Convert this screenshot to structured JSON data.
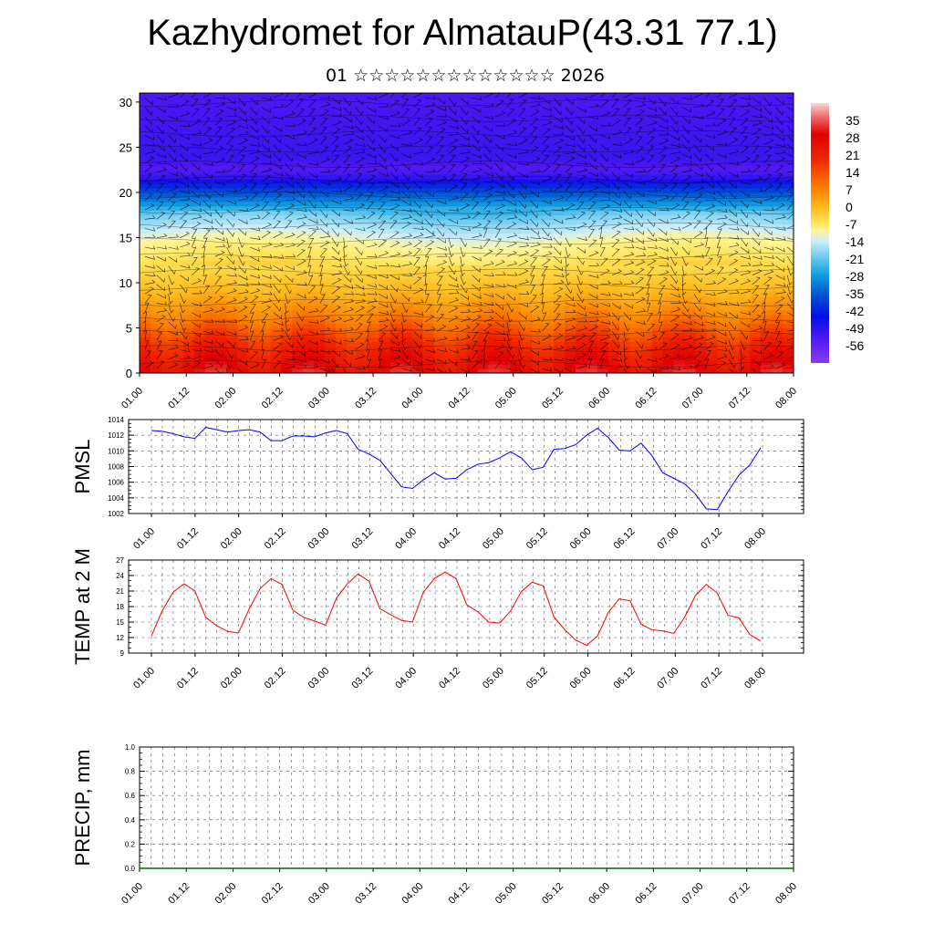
{
  "title": "Kazhydromet for AlmatauP(43.31 77.1)",
  "subtitle": "01 ☆☆☆☆☆☆☆☆☆☆☆☆☆ 2026",
  "colors": {
    "pmsl_line": "#0000ff",
    "temp_line": "#ff0000",
    "precip_line": "#006600"
  },
  "chart_data": [
    {
      "type": "heatmap",
      "title": "",
      "xlabel": "",
      "ylabel": "",
      "x_ticks": [
        "01.00",
        "01.12",
        "02.00",
        "02.12",
        "03.00",
        "03.12",
        "04.00",
        "04.12",
        "05.00",
        "05.12",
        "06.00",
        "06.12",
        "07.00",
        "07.12",
        "08.00"
      ],
      "y_ticks": [
        0,
        5,
        10,
        15,
        20,
        25,
        30
      ],
      "ylim": [
        0,
        31
      ],
      "colorbar": {
        "labels": [
          35,
          28,
          21,
          14,
          7,
          0,
          -7,
          -14,
          -21,
          -28,
          -35,
          -42,
          -49,
          -56
        ],
        "range": [
          -63,
          42
        ]
      },
      "overlay": "wind barbs",
      "temperature_profile": [
        {
          "level": 0,
          "value": 28
        },
        {
          "level": 3,
          "value": 22
        },
        {
          "level": 6,
          "value": 14
        },
        {
          "level": 9,
          "value": 7
        },
        {
          "level": 12,
          "value": 1
        },
        {
          "level": 14.5,
          "value": -7
        },
        {
          "level": 16,
          "value": -14
        },
        {
          "level": 18,
          "value": -24
        },
        {
          "level": 20,
          "value": -38
        },
        {
          "level": 21.5,
          "value": -52
        },
        {
          "level": 22.5,
          "value": -57
        },
        {
          "level": 24,
          "value": -54
        },
        {
          "level": 31,
          "value": -56
        }
      ]
    },
    {
      "type": "line",
      "ylabel": "PMSL",
      "ylim": [
        1002,
        1014
      ],
      "y_ticks": [
        1002,
        1004,
        1006,
        1008,
        1010,
        1012,
        1014
      ],
      "x_ticks": [
        "01.00",
        "01.12",
        "02.00",
        "02.12",
        "03.00",
        "03.12",
        "04.00",
        "04.12",
        "05.00",
        "05.12",
        "06.00",
        "06.12",
        "07.00",
        "07.12",
        "08.00"
      ],
      "series": [
        {
          "values": [
            1012.6,
            1012.5,
            1012.2,
            1011.8,
            1011.6,
            1013.0,
            1012.7,
            1012.4,
            1012.6,
            1012.7,
            1012.4,
            1011.3,
            1011.3,
            1011.9,
            1011.9,
            1011.8,
            1012.3,
            1012.6,
            1012.2,
            1010.2,
            1009.6,
            1008.8,
            1007.1,
            1005.4,
            1005.2,
            1006.3,
            1007.2,
            1006.4,
            1006.5,
            1007.6,
            1008.3,
            1008.5,
            1009.1,
            1009.9,
            1009.1,
            1007.6,
            1007.9,
            1010.2,
            1010.3,
            1010.8,
            1012.0,
            1012.9,
            1011.7,
            1010.1,
            1010.0,
            1011.0,
            1009.4,
            1007.2,
            1006.5,
            1005.8,
            1004.5,
            1002.6,
            1002.5,
            1004.8,
            1006.9,
            1008.2,
            1010.4
          ]
        }
      ]
    },
    {
      "type": "line",
      "ylabel": "TEMP at 2 M",
      "ylim": [
        9,
        27
      ],
      "y_ticks": [
        9,
        12,
        15,
        18,
        21,
        24,
        27
      ],
      "x_ticks": [
        "01.00",
        "01.12",
        "02.00",
        "02.12",
        "03.00",
        "03.12",
        "04.00",
        "04.12",
        "05.00",
        "05.12",
        "06.00",
        "06.12",
        "07.00",
        "07.12",
        "08.00"
      ],
      "series": [
        {
          "values": [
            12.3,
            17.2,
            20.8,
            22.4,
            21.0,
            15.9,
            14.3,
            13.2,
            12.9,
            17.6,
            21.5,
            23.4,
            22.3,
            17.3,
            15.9,
            15.2,
            14.4,
            19.6,
            22.4,
            24.3,
            22.9,
            17.6,
            16.4,
            15.3,
            15.0,
            20.8,
            23.4,
            24.7,
            23.4,
            18.3,
            17.0,
            15.0,
            14.8,
            17.1,
            20.9,
            22.7,
            22.0,
            16.0,
            13.5,
            11.5,
            10.5,
            12.3,
            16.9,
            19.5,
            19.1,
            14.6,
            13.5,
            13.3,
            12.8,
            15.9,
            20.1,
            22.3,
            20.6,
            16.3,
            15.8,
            12.6,
            11.3
          ]
        }
      ]
    },
    {
      "type": "line",
      "ylabel": "PRECIP, mm",
      "ylim": [
        0,
        1
      ],
      "y_ticks": [
        "0.0",
        "0.2",
        "0.4",
        "0.6",
        "0.8",
        "1.0"
      ],
      "x_ticks": [
        "01.00",
        "01.12",
        "02.00",
        "02.12",
        "03.00",
        "03.12",
        "04.00",
        "04.12",
        "05.00",
        "05.12",
        "06.00",
        "06.12",
        "07.00",
        "07.12",
        "08.00"
      ],
      "series": [
        {
          "values": [
            0,
            0,
            0,
            0,
            0,
            0,
            0,
            0,
            0,
            0,
            0,
            0,
            0,
            0,
            0,
            0,
            0,
            0,
            0,
            0,
            0,
            0,
            0,
            0,
            0,
            0,
            0,
            0,
            0,
            0,
            0,
            0,
            0,
            0,
            0,
            0,
            0,
            0,
            0,
            0,
            0,
            0,
            0,
            0,
            0,
            0,
            0,
            0,
            0,
            0,
            0,
            0,
            0,
            0,
            0,
            0,
            0,
            0,
            0,
            0,
            0
          ]
        }
      ]
    }
  ]
}
